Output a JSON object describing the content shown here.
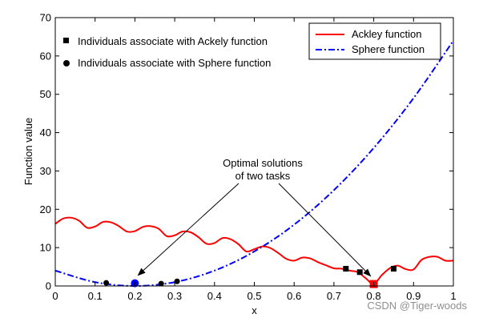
{
  "chart_data": {
    "type": "line",
    "xlabel": "x",
    "ylabel": "Function value",
    "xlim": [
      0,
      1
    ],
    "ylim": [
      0,
      70
    ],
    "xticks": [
      "0",
      "0.1",
      "0.2",
      "0.3",
      "0.4",
      "0.5",
      "0.6",
      "0.7",
      "0.8",
      "0.9",
      "1"
    ],
    "yticks": [
      "0",
      "10",
      "20",
      "30",
      "40",
      "50",
      "60",
      "70"
    ],
    "grid": false,
    "series": [
      {
        "name": "Ackley function",
        "color": "#ff0000",
        "style": "solid",
        "x": [
          0,
          0.02,
          0.04,
          0.06,
          0.08,
          0.1,
          0.12,
          0.14,
          0.16,
          0.18,
          0.2,
          0.22,
          0.24,
          0.26,
          0.28,
          0.3,
          0.32,
          0.34,
          0.36,
          0.38,
          0.4,
          0.42,
          0.44,
          0.46,
          0.48,
          0.5,
          0.52,
          0.54,
          0.56,
          0.58,
          0.6,
          0.62,
          0.64,
          0.66,
          0.68,
          0.7,
          0.72,
          0.74,
          0.76,
          0.78,
          0.8,
          0.82,
          0.84,
          0.86,
          0.88,
          0.9,
          0.92,
          0.94,
          0.96,
          0.98,
          1.0
        ],
        "y": [
          16.2,
          17.6,
          17.8,
          17.0,
          15.2,
          15.5,
          16.7,
          16.6,
          15.6,
          14.2,
          14.3,
          15.4,
          15.6,
          14.9,
          13.0,
          13.2,
          14.2,
          14.0,
          12.7,
          11.0,
          11.2,
          12.5,
          12.2,
          10.9,
          9.0,
          9.6,
          10.3,
          9.9,
          8.6,
          7.1,
          6.6,
          7.4,
          7.2,
          6.2,
          5.4,
          4.6,
          4.5,
          4.0,
          3.6,
          2.0,
          0.5,
          2.8,
          4.6,
          5.3,
          4.4,
          4.3,
          6.8,
          7.6,
          7.6,
          6.6,
          6.6
        ]
      },
      {
        "name": "Sphere function",
        "color": "#0000ff",
        "style": "dashdot",
        "x": [
          0,
          0.1,
          0.2,
          0.3,
          0.4,
          0.5,
          0.6,
          0.7,
          0.8,
          0.9,
          1.0
        ],
        "y": [
          4,
          1,
          0,
          1,
          4,
          9,
          16,
          25,
          36,
          49,
          64
        ]
      }
    ],
    "markers": {
      "ackley_individuals": {
        "label": "Individuals associate with Ackely function",
        "shape": "square",
        "x": [
          0.73,
          0.765,
          0.85
        ],
        "y": [
          4.5,
          3.6,
          4.5
        ]
      },
      "sphere_individuals": {
        "label": "Individuals associate with Sphere function",
        "shape": "circle",
        "x": [
          0.128,
          0.266,
          0.306
        ],
        "y": [
          0.8,
          0.6,
          1.2
        ]
      },
      "optimum_sphere": {
        "x": 0.2,
        "y": 0.7,
        "color": "#0000ff",
        "shape": "circle"
      },
      "optimum_ackley": {
        "x": 0.8,
        "y": 0.5,
        "color": "#ff0000",
        "shape": "square"
      }
    },
    "annotation": {
      "lines": [
        "Optimal solutions",
        "of two tasks"
      ],
      "arrows_to": [
        [
          0.2,
          0.7
        ],
        [
          0.8,
          0.5
        ]
      ]
    },
    "legend_placement": "top-right"
  },
  "watermark": "CSDN @Tiger-woods"
}
